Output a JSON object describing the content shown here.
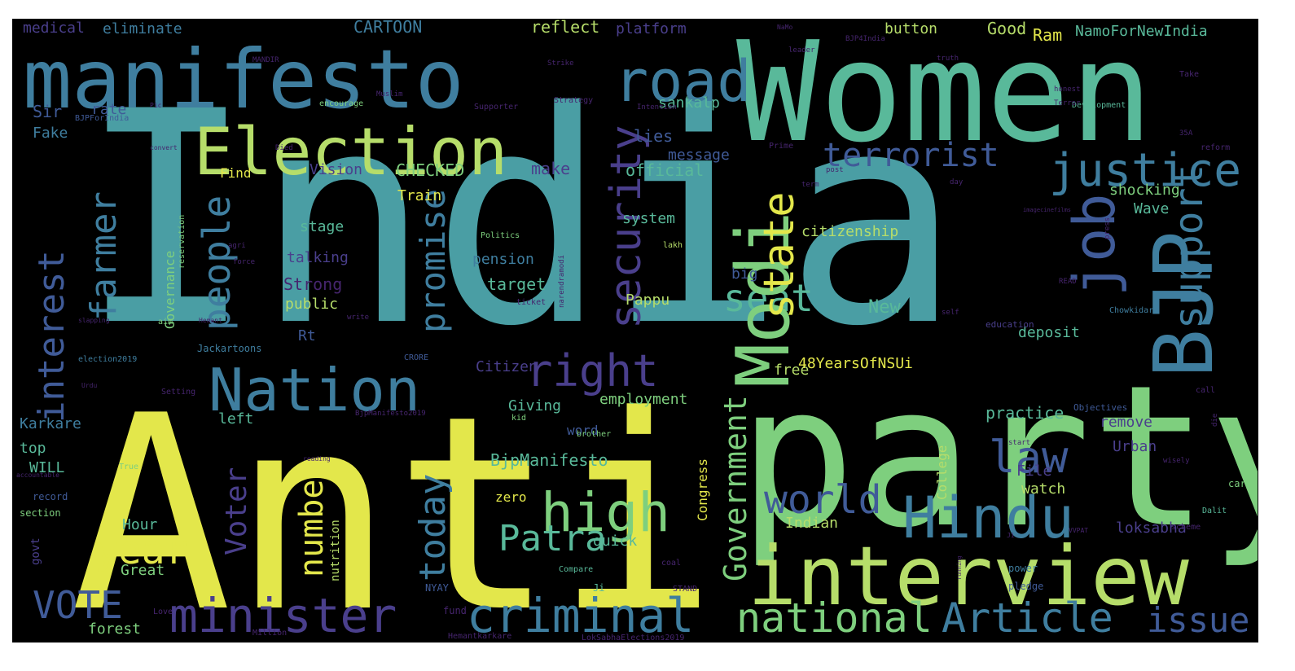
{
  "palette": {
    "background": "#000000",
    "yellow": "#e3e74b",
    "lime": "#b6dd6a",
    "green": "#7ecf7e",
    "teal": "#59b99a",
    "cyan": "#4a9ea4",
    "steel": "#3f7e9f",
    "blue": "#405b98",
    "indigo": "#4a3f8c",
    "purple": "#46256e"
  },
  "words": [
    {
      "text": "India",
      "color": "cyan"
    },
    {
      "text": "Anti",
      "color": "yellow"
    },
    {
      "text": "party",
      "color": "green"
    },
    {
      "text": "Women",
      "color": "teal"
    },
    {
      "text": "manifesto",
      "color": "steel"
    },
    {
      "text": "interview",
      "color": "lime"
    },
    {
      "text": "Election",
      "color": "lime"
    },
    {
      "text": "Nation",
      "color": "steel"
    },
    {
      "text": "Hindu",
      "color": "steel"
    },
    {
      "text": "criminal",
      "color": "steel"
    },
    {
      "text": "minister",
      "color": "indigo"
    },
    {
      "text": "national",
      "color": "green"
    },
    {
      "text": "Article",
      "color": "steel"
    },
    {
      "text": "road",
      "color": "steel"
    },
    {
      "text": "justice",
      "color": "steel"
    },
    {
      "text": "high",
      "color": "green"
    },
    {
      "text": "world",
      "color": "blue"
    },
    {
      "text": "terrorist",
      "color": "blue"
    },
    {
      "text": "issue",
      "color": "blue"
    },
    {
      "text": "right",
      "color": "indigo"
    },
    {
      "text": "law",
      "color": "blue"
    },
    {
      "text": "seat",
      "color": "teal"
    },
    {
      "text": "Patra",
      "color": "teal"
    },
    {
      "text": "year",
      "color": "yellow"
    },
    {
      "text": "VOTE",
      "color": "blue"
    },
    {
      "text": "Modi",
      "color": "green"
    },
    {
      "text": "BJP",
      "color": "steel"
    },
    {
      "text": "job",
      "color": "blue"
    },
    {
      "text": "support",
      "color": "steel"
    },
    {
      "text": "security",
      "color": "indigo"
    },
    {
      "text": "state",
      "color": "yellow"
    },
    {
      "text": "people",
      "color": "steel"
    },
    {
      "text": "farmer",
      "color": "steel"
    },
    {
      "text": "interest",
      "color": "blue"
    },
    {
      "text": "promise",
      "color": "steel"
    },
    {
      "text": "today",
      "color": "steel"
    },
    {
      "text": "number",
      "color": "yellow"
    },
    {
      "text": "Government",
      "color": "green"
    },
    {
      "text": "Voter",
      "color": "indigo"
    },
    {
      "text": "CARTOON",
      "color": "steel"
    },
    {
      "text": "reflect",
      "color": "lime"
    },
    {
      "text": "platform",
      "color": "indigo"
    },
    {
      "text": "button",
      "color": "lime"
    },
    {
      "text": "Good",
      "color": "lime"
    },
    {
      "text": "Ram",
      "color": "yellow"
    },
    {
      "text": "NamoForNewIndia",
      "color": "teal"
    },
    {
      "text": "medical",
      "color": "indigo"
    },
    {
      "text": "eliminate",
      "color": "steel"
    },
    {
      "text": "rate",
      "color": "blue"
    },
    {
      "text": "Sir",
      "color": "blue"
    },
    {
      "text": "sankalp",
      "color": "teal"
    },
    {
      "text": "Fake",
      "color": "steel"
    },
    {
      "text": "lies",
      "color": "blue"
    },
    {
      "text": "message",
      "color": "blue"
    },
    {
      "text": "official",
      "color": "teal"
    },
    {
      "text": "Find",
      "color": "yellow"
    },
    {
      "text": "Vision",
      "color": "indigo"
    },
    {
      "text": "CHECKED",
      "color": "green"
    },
    {
      "text": "make",
      "color": "indigo"
    },
    {
      "text": "Train",
      "color": "yellow"
    },
    {
      "text": "shocking",
      "color": "green"
    },
    {
      "text": "Wave",
      "color": "teal"
    },
    {
      "text": "system",
      "color": "teal"
    },
    {
      "text": "stage",
      "color": "teal"
    },
    {
      "text": "citizenship",
      "color": "lime"
    },
    {
      "text": "talking",
      "color": "indigo"
    },
    {
      "text": "pension",
      "color": "steel"
    },
    {
      "text": "Strong",
      "color": "purple"
    },
    {
      "text": "target",
      "color": "teal"
    },
    {
      "text": "big",
      "color": "blue"
    },
    {
      "text": "public",
      "color": "lime"
    },
    {
      "text": "Pappu",
      "color": "lime"
    },
    {
      "text": "New",
      "color": "teal"
    },
    {
      "text": "Rt",
      "color": "blue"
    },
    {
      "text": "Governance",
      "color": "green"
    },
    {
      "text": "deposit",
      "color": "teal"
    },
    {
      "text": "free",
      "color": "lime"
    },
    {
      "text": "48YearsOfNSUi",
      "color": "yellow"
    },
    {
      "text": "Citizen",
      "color": "indigo"
    },
    {
      "text": "Giving",
      "color": "teal"
    },
    {
      "text": "employment",
      "color": "green"
    },
    {
      "text": "Karkare",
      "color": "steel"
    },
    {
      "text": "left",
      "color": "teal"
    },
    {
      "text": "practice",
      "color": "teal"
    },
    {
      "text": "remove",
      "color": "indigo"
    },
    {
      "text": "College",
      "color": "lime"
    },
    {
      "text": "word",
      "color": "blue"
    },
    {
      "text": "top",
      "color": "teal"
    },
    {
      "text": "Urban",
      "color": "indigo"
    },
    {
      "text": "WILL",
      "color": "teal"
    },
    {
      "text": "BjpManifesto",
      "color": "teal"
    },
    {
      "text": "File",
      "color": "indigo"
    },
    {
      "text": "zero",
      "color": "yellow"
    },
    {
      "text": "watch",
      "color": "lime"
    },
    {
      "text": "Congress",
      "color": "yellow"
    },
    {
      "text": "Indian",
      "color": "lime"
    },
    {
      "text": "Hour",
      "color": "teal"
    },
    {
      "text": "loksabha",
      "color": "indigo"
    },
    {
      "text": "quick",
      "color": "teal"
    },
    {
      "text": "govt",
      "color": "indigo"
    },
    {
      "text": "Great",
      "color": "green"
    },
    {
      "text": "nutrition",
      "color": "lime"
    },
    {
      "text": "forest",
      "color": "green"
    },
    {
      "text": "Jackartoons",
      "color": "steel"
    },
    {
      "text": "election2019",
      "color": "steel"
    },
    {
      "text": "CRORE",
      "color": "blue"
    },
    {
      "text": "Chowkidar",
      "color": "steel"
    },
    {
      "text": "education",
      "color": "indigo"
    },
    {
      "text": "Compare",
      "color": "teal"
    },
    {
      "text": "Ji",
      "color": "teal"
    },
    {
      "text": "NYAY",
      "color": "blue"
    },
    {
      "text": "fund",
      "color": "purple"
    },
    {
      "text": "STAND",
      "color": "purple"
    },
    {
      "text": "power",
      "color": "steel"
    },
    {
      "text": "pledge",
      "color": "blue"
    },
    {
      "text": "card",
      "color": "green"
    },
    {
      "text": "Dalit",
      "color": "teal"
    },
    {
      "text": "scheme",
      "color": "purple"
    },
    {
      "text": "LokSabhaElections2019",
      "color": "purple"
    },
    {
      "text": "Hemantkarkare",
      "color": "purple"
    },
    {
      "text": "Million",
      "color": "purple"
    },
    {
      "text": "Love",
      "color": "purple"
    },
    {
      "text": "section",
      "color": "green"
    },
    {
      "text": "record",
      "color": "blue"
    },
    {
      "text": "True",
      "color": "green"
    },
    {
      "text": "accountable",
      "color": "purple"
    },
    {
      "text": "reading",
      "color": "purple"
    },
    {
      "text": "kid",
      "color": "green"
    },
    {
      "text": "brother",
      "color": "green"
    },
    {
      "text": "start",
      "color": "purple"
    },
    {
      "text": "wisely",
      "color": "purple"
    },
    {
      "text": "Objectives",
      "color": "blue"
    },
    {
      "text": "call",
      "color": "purple"
    },
    {
      "text": "die",
      "color": "purple"
    },
    {
      "text": "BjpManifesto2019",
      "color": "purple"
    },
    {
      "text": "Setting",
      "color": "purple"
    },
    {
      "text": "Urdu",
      "color": "purple"
    },
    {
      "text": "aim",
      "color": "green"
    },
    {
      "text": "Hemant",
      "color": "purple"
    },
    {
      "text": "slapping",
      "color": "purple"
    },
    {
      "text": "write",
      "color": "purple"
    },
    {
      "text": "agri",
      "color": "purple"
    },
    {
      "text": "force",
      "color": "purple"
    },
    {
      "text": "reservation",
      "color": "green"
    },
    {
      "text": "Politics",
      "color": "green"
    },
    {
      "text": "lakh",
      "color": "lime"
    },
    {
      "text": "narendramodi",
      "color": "purple"
    },
    {
      "text": "ticket",
      "color": "purple"
    },
    {
      "text": "self",
      "color": "purple"
    },
    {
      "text": "READ",
      "color": "purple"
    },
    {
      "text": "press",
      "color": "purple"
    },
    {
      "text": "reform",
      "color": "purple"
    },
    {
      "text": "35A",
      "color": "purple"
    },
    {
      "text": "Take",
      "color": "purple"
    },
    {
      "text": "Development",
      "color": "teal"
    },
    {
      "text": "honest",
      "color": "purple"
    },
    {
      "text": "Terror",
      "color": "purple"
    },
    {
      "text": "Prime",
      "color": "purple"
    },
    {
      "text": "post",
      "color": "purple"
    },
    {
      "text": "term",
      "color": "purple"
    },
    {
      "text": "day",
      "color": "purple"
    },
    {
      "text": "imagecinefilms",
      "color": "purple"
    },
    {
      "text": "Strategy",
      "color": "purple"
    },
    {
      "text": "Intention",
      "color": "purple"
    },
    {
      "text": "Supporter",
      "color": "purple"
    },
    {
      "text": "encourage",
      "color": "green"
    },
    {
      "text": "Muslim",
      "color": "purple"
    },
    {
      "text": "MANDIR",
      "color": "purple"
    },
    {
      "text": "Strike",
      "color": "purple"
    },
    {
      "text": "leader",
      "color": "purple"
    },
    {
      "text": "truth",
      "color": "purple"
    },
    {
      "text": "NaMo",
      "color": "purple"
    },
    {
      "text": "BJP4India",
      "color": "purple"
    },
    {
      "text": "BJPForIndia",
      "color": "blue"
    },
    {
      "text": "Pic",
      "color": "purple"
    },
    {
      "text": "convert",
      "color": "purple"
    },
    {
      "text": "Died",
      "color": "purple"
    },
    {
      "text": "Ji",
      "color": "purple"
    },
    {
      "text": "running",
      "color": "purple"
    },
    {
      "text": "coal",
      "color": "purple"
    },
    {
      "text": "VVPAT",
      "color": "purple"
    }
  ]
}
